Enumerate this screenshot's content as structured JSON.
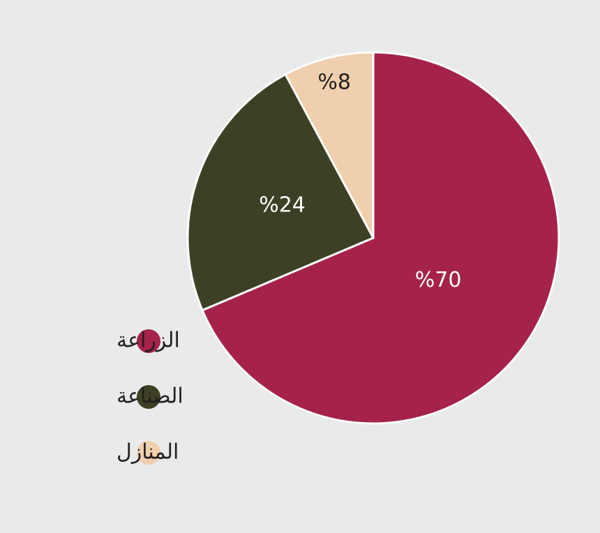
{
  "chart_data": {
    "type": "pie",
    "categories": [
      "الزراعة",
      "الصناعة",
      "المنازل"
    ],
    "values": [
      70,
      24,
      8
    ],
    "value_labels": [
      "%70",
      "%24",
      "%8"
    ],
    "colors": [
      "#a5234b",
      "#3e4025",
      "#f0cfae"
    ],
    "legend": "left"
  }
}
